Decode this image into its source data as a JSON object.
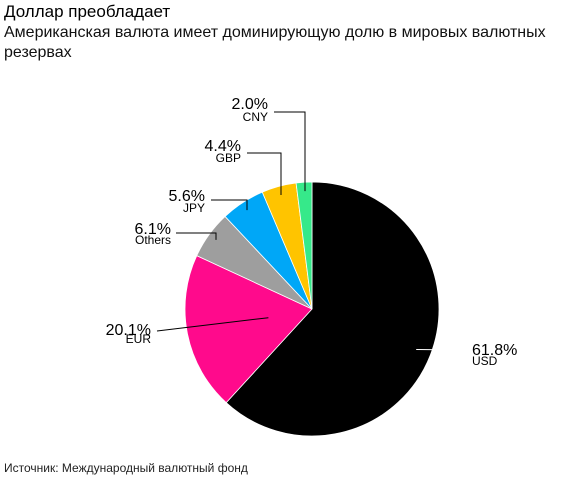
{
  "header": {
    "title": "Доллар преобладает",
    "subtitle": "Американская валюта имеет доминирующую долю в мировых валютных резервах"
  },
  "footer": {
    "source": "Источник: Международный валютный фонд"
  },
  "chart_data": {
    "type": "pie",
    "start_angle_deg": 0,
    "direction": "clockwise",
    "slices": [
      {
        "label": "USD",
        "value": 61.8,
        "value_label": "61.8%",
        "color": "#000000"
      },
      {
        "label": "EUR",
        "value": 20.1,
        "value_label": "20.1%",
        "color": "#ff0a8c"
      },
      {
        "label": "Others",
        "value": 6.1,
        "value_label": "6.1%",
        "color": "#9e9e9e"
      },
      {
        "label": "JPY",
        "value": 5.6,
        "value_label": "5.6%",
        "color": "#00a7f7"
      },
      {
        "label": "GBP",
        "value": 4.4,
        "value_label": "4.4%",
        "color": "#ffc400"
      },
      {
        "label": "CNY",
        "value": 2.0,
        "value_label": "2.0%",
        "color": "#36e98a"
      }
    ]
  }
}
